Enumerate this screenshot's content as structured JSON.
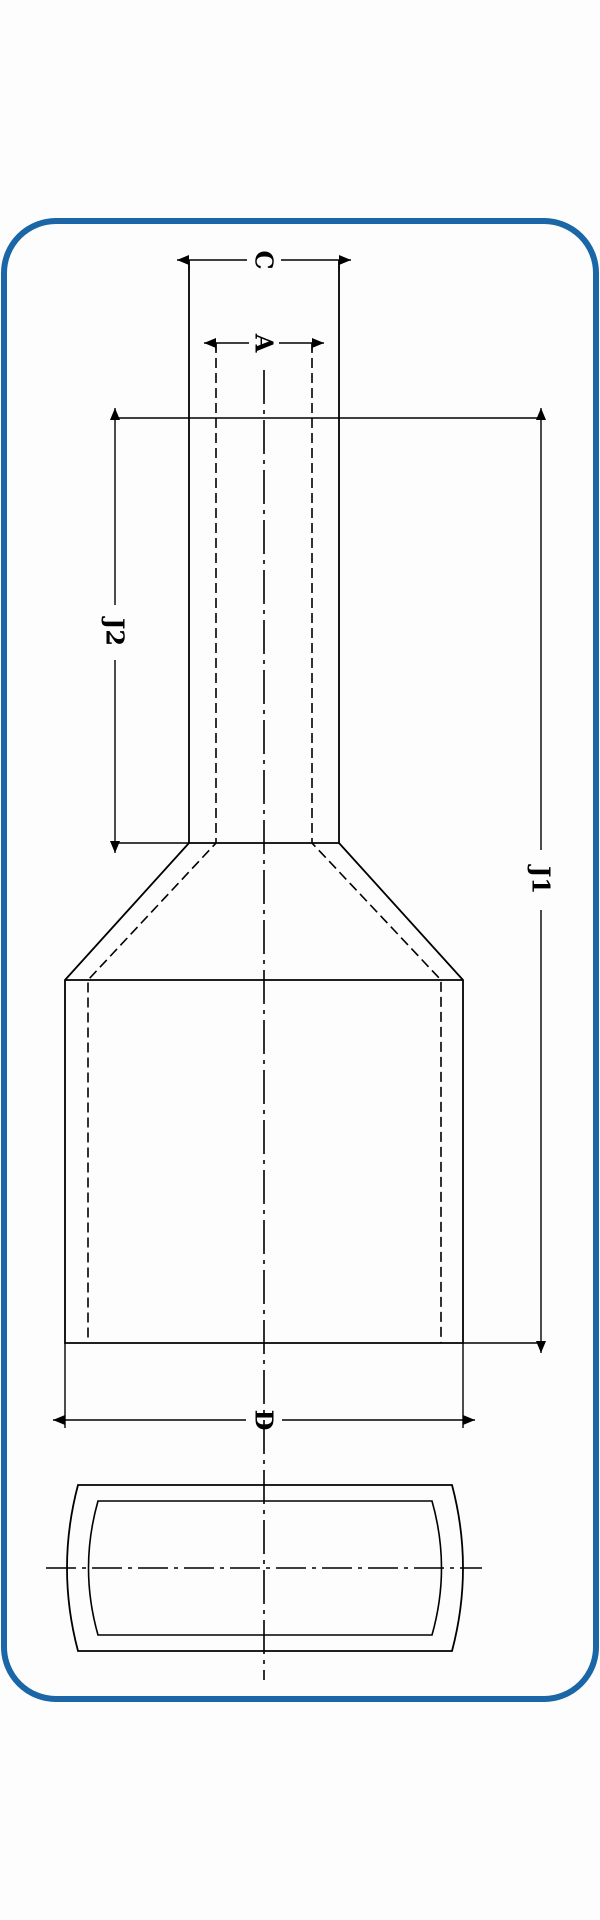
{
  "colors": {
    "frame": "#1a66a6",
    "background": "#fdfdfd",
    "line": "#000000"
  },
  "dimensions": {
    "C": "C",
    "A": "A",
    "J2": "J2",
    "J1": "J1",
    "D": "D"
  }
}
